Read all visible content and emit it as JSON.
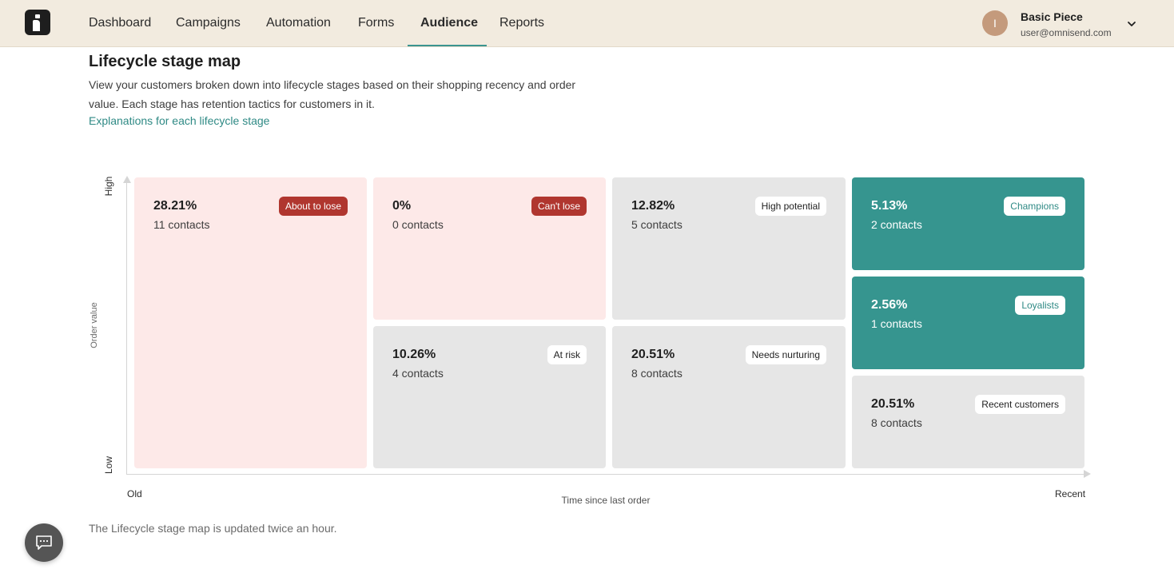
{
  "nav": {
    "items": [
      "Dashboard",
      "Campaigns",
      "Automation",
      "Forms",
      "Audience",
      "Reports"
    ],
    "active": "Audience",
    "accent_color": "#3a9590"
  },
  "user": {
    "initial": "I",
    "name": "Basic Piece",
    "email": "user@omnisend.com"
  },
  "page": {
    "title": "Lifecycle stage map",
    "description": "View your customers broken down into lifecycle stages based on their shopping recency and order value. Each stage has retention tactics for customers in it.",
    "link": "Explanations for each lifecycle stage",
    "footer_note": "The Lifecycle stage map is updated twice an hour."
  },
  "axes": {
    "y_high": "High",
    "y_low": "Low",
    "y_title": "Order value",
    "x_old": "Old",
    "x_recent": "Recent",
    "x_title": "Time since last order"
  },
  "stages": {
    "about_to_lose": {
      "percent": "28.21%",
      "contacts": "11 contacts",
      "label": "About to lose"
    },
    "cant_lose": {
      "percent": "0%",
      "contacts": "0 contacts",
      "label": "Can't lose"
    },
    "high_potential": {
      "percent": "12.82%",
      "contacts": "5 contacts",
      "label": "High potential"
    },
    "champions": {
      "percent": "5.13%",
      "contacts": "2 contacts",
      "label": "Champions"
    },
    "loyalists": {
      "percent": "2.56%",
      "contacts": "1 contacts",
      "label": "Loyalists"
    },
    "at_risk": {
      "percent": "10.26%",
      "contacts": "4 contacts",
      "label": "At risk"
    },
    "needs_nurturing": {
      "percent": "20.51%",
      "contacts": "8 contacts",
      "label": "Needs nurturing"
    },
    "recent_customers": {
      "percent": "20.51%",
      "contacts": "8 contacts",
      "label": "Recent customers"
    }
  },
  "colors": {
    "risk_bg": "#fde9e8",
    "risk_badge": "#b0362f",
    "neutral_bg": "#e6e6e6",
    "good_bg": "#36958f"
  },
  "icons": [
    "logo-icon",
    "chevron-down-icon",
    "chat-icon"
  ]
}
